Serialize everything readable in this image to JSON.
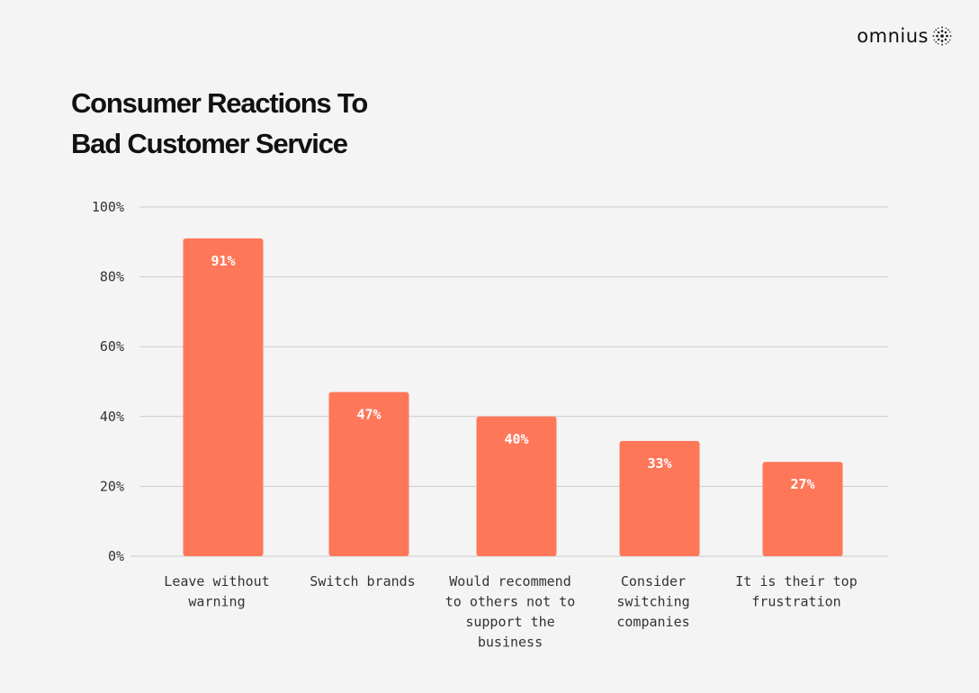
{
  "brand": {
    "name": "omnius",
    "logo_icon": "dotted-sphere-icon"
  },
  "title_lines": [
    "Consumer Reactions To",
    "Bad Customer Service"
  ],
  "colors": {
    "bar": "#ff7759",
    "grid": "#cccccc",
    "background": "#f4f4f4"
  },
  "chart_data": {
    "type": "bar",
    "title": "Consumer Reactions To Bad Customer Service",
    "categories": [
      [
        "Leave without",
        "warning"
      ],
      [
        "Switch brands"
      ],
      [
        "Would recommend",
        "to others not to",
        "support the",
        "business"
      ],
      [
        "Consider",
        "switching",
        "companies"
      ],
      [
        "It is their top",
        "frustration"
      ]
    ],
    "values": [
      91,
      47,
      40,
      33,
      27
    ],
    "value_labels": [
      "91%",
      "47%",
      "40%",
      "33%",
      "27%"
    ],
    "yticks": [
      {
        "value": 0,
        "label": "0%"
      },
      {
        "value": 20,
        "label": "20%"
      },
      {
        "value": 40,
        "label": "40%"
      },
      {
        "value": 60,
        "label": "60%"
      },
      {
        "value": 80,
        "label": "80%"
      },
      {
        "value": 100,
        "label": "100%"
      }
    ],
    "ylim": [
      0,
      100
    ],
    "grid": true,
    "legend": "none"
  }
}
